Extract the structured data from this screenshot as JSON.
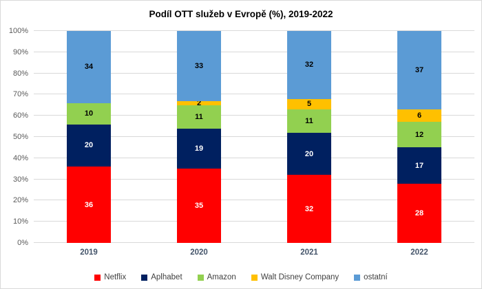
{
  "chart_data": {
    "type": "bar",
    "stacked": true,
    "orientation": "vertical",
    "title": "Podíl OTT služeb v Evropě (%), 2019-2022",
    "categories": [
      "2019",
      "2020",
      "2021",
      "2022"
    ],
    "series": [
      {
        "name": "Netflix",
        "color": "#ff0000",
        "label_color": "#ffffff",
        "values": [
          36,
          35,
          32,
          28
        ]
      },
      {
        "name": "Aplhabet",
        "color": "#002060",
        "label_color": "#ffffff",
        "values": [
          20,
          19,
          20,
          17
        ]
      },
      {
        "name": "Amazon",
        "color": "#92d050",
        "label_color": "#000000",
        "values": [
          10,
          11,
          11,
          12
        ]
      },
      {
        "name": "Walt Disney Company",
        "color": "#ffc000",
        "label_color": "#000000",
        "values": [
          0,
          2,
          5,
          6
        ]
      },
      {
        "name": "ostatní",
        "color": "#5b9bd5",
        "label_color": "#000000",
        "values": [
          34,
          33,
          32,
          37
        ]
      }
    ],
    "ylim": [
      0,
      100
    ],
    "y_ticks": [
      "0%",
      "10%",
      "20%",
      "30%",
      "40%",
      "50%",
      "60%",
      "70%",
      "80%",
      "90%",
      "100%"
    ],
    "grid": true,
    "gridline_color": "#d9d9d9",
    "legend_position": "bottom"
  }
}
